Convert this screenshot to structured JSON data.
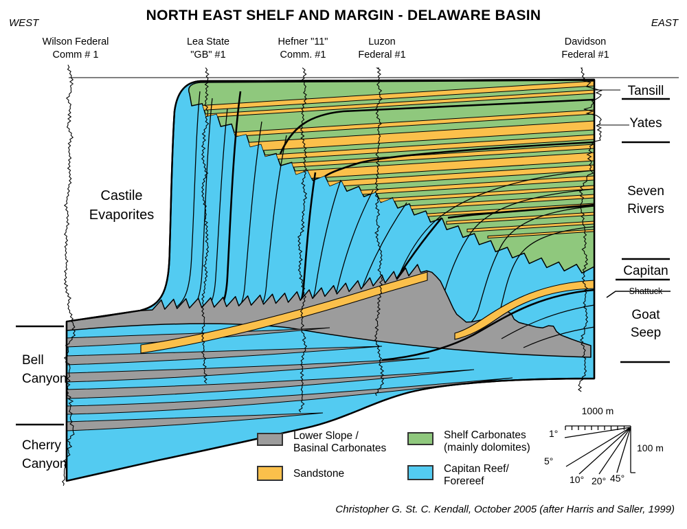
{
  "title": "NORTH EAST SHELF AND MARGIN - DELAWARE BASIN",
  "compass": {
    "west": "WEST",
    "east": "EAST"
  },
  "wells": [
    {
      "line1": "Wilson Federal",
      "line2": "Comm # 1"
    },
    {
      "line1": "Lea State",
      "line2": "\"GB\" #1"
    },
    {
      "line1": "Hefner \"11\"",
      "line2": "Comm. #1"
    },
    {
      "line1": "Luzon",
      "line2": "Federal #1"
    },
    {
      "line1": "Davidson",
      "line2": "Federal #1"
    }
  ],
  "labels_left": [
    {
      "l1": "Castile",
      "l2": "Evaporites"
    },
    {
      "l1": "Bell",
      "l2": "Canyon"
    },
    {
      "l1": "Cherry",
      "l2": "Canyon"
    }
  ],
  "labels_right": [
    {
      "l1": "Tansill"
    },
    {
      "l1": "Yates"
    },
    {
      "l1": "Seven",
      "l2": "Rivers"
    },
    {
      "l1": "Capitan"
    },
    {
      "l1": "Shattuck"
    },
    {
      "l1": "Goat",
      "l2": "Seep"
    }
  ],
  "legend": {
    "items": [
      {
        "l1": "Lower Slope /",
        "l2": "Basinal Carbonates"
      },
      {
        "l1": "Sandstone",
        "l2": ""
      },
      {
        "l1": "Shelf Carbonates",
        "l2": "(mainly dolomites)"
      },
      {
        "l1": "Capitan Reef/",
        "l2": "Forereef"
      }
    ]
  },
  "scale_bar": {
    "horizontal_label": "1000 m",
    "vertical_label": "100 m",
    "angles": [
      "1°",
      "5°",
      "10°",
      "20°",
      "45°"
    ]
  },
  "attribution": "Christopher G. St. C. Kendall, October 2005 (after Harris and Saller, 1999)",
  "colors": {
    "reef": "#53CBF1",
    "shelf": "#8FC87D",
    "sandstone": "#FBC04B",
    "basinal": "#9C9C9C",
    "outline": "#000000"
  }
}
